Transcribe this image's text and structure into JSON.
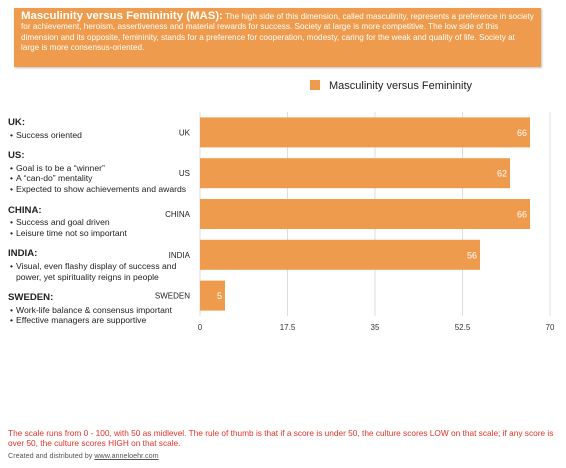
{
  "header": {
    "title": "Masculinity versus Femininity (MAS):",
    "text": "The high side of this dimension, called masculinity, represents a preference in society for achievement, heroism, assertiveness and material rewards for success. Society at large is more competitive. The low side of this dimension and its opposite, femininity, stands for a preference for cooperation, modesty, caring for the weak and quality of life. Society at large is more consensus-oriented."
  },
  "notes": [
    {
      "country": "UK:",
      "bullets": [
        "Success oriented"
      ]
    },
    {
      "country": "US:",
      "bullets": [
        "Goal is to be a “winner”",
        "A “can-do” mentality",
        "Expected to show achievements and awards"
      ]
    },
    {
      "country": "CHINA:",
      "bullets": [
        "Success and goal driven",
        "Leisure time not so important"
      ]
    },
    {
      "country": "INDIA:",
      "bullets": [
        "Visual, even flashy display of success and power, yet spirituality reigns in people"
      ]
    },
    {
      "country": "SWEDEN:",
      "bullets": [
        "Work-life balance & consensus important",
        "Effective managers are supportive"
      ]
    }
  ],
  "footnote": "The scale runs from 0 - 100, with 50 as midlevel. The rule of thumb is that if a score is under 50, the culture scores LOW on that scale; if any score is over 50, the culture scores HIGH on that scale.",
  "credit": {
    "prefix": "Created and distributed by ",
    "link": "www.anneloehr.com"
  },
  "colors": {
    "bar": "#ee9b4d",
    "header_bg": "#ee9b4d",
    "footnote": "#e0332a",
    "grid": "#dddddd"
  },
  "chart_data": {
    "type": "bar",
    "orientation": "horizontal",
    "categories": [
      "UK",
      "US",
      "CHINA",
      "INDIA",
      "SWEDEN"
    ],
    "series": [
      {
        "name": "Masculinity versus Femininity",
        "values": [
          66,
          62,
          66,
          56,
          5
        ]
      }
    ],
    "xlim": [
      0,
      70
    ],
    "xticks": [
      "0",
      "17.5",
      "35",
      "52.5",
      "70"
    ],
    "grid": true,
    "legend": "top"
  }
}
